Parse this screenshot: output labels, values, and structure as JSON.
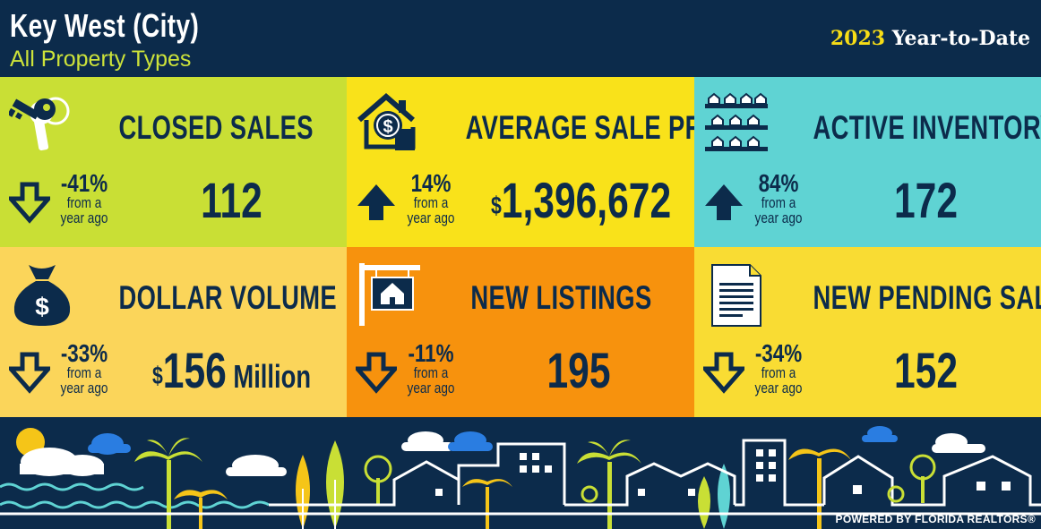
{
  "header": {
    "city": "Key West (City)",
    "property_types": "All Property Types",
    "year": "2023",
    "period": "Year-to-Date"
  },
  "tiles": [
    {
      "title": "CLOSED SALES",
      "pct": "-41%",
      "from_line1": "from a",
      "from_line2": "year ago",
      "direction": "down",
      "value": "112",
      "value_prefix": "",
      "value_unit": "",
      "icon": "keys-icon"
    },
    {
      "title": "AVERAGE SALE PRICE",
      "pct": "14%",
      "from_line1": "from a",
      "from_line2": "year ago",
      "direction": "up",
      "value": "1,396,672",
      "value_prefix": "$",
      "value_unit": "",
      "icon": "house-dollar-icon"
    },
    {
      "title": "ACTIVE INVENTORY",
      "pct": "84%",
      "from_line1": "from a",
      "from_line2": "year ago",
      "direction": "up",
      "value": "172",
      "value_prefix": "",
      "value_unit": "",
      "icon": "houses-rows-icon"
    },
    {
      "title": "DOLLAR VOLUME",
      "pct": "-33%",
      "from_line1": "from a",
      "from_line2": "year ago",
      "direction": "down",
      "value": "156",
      "value_prefix": "$",
      "value_unit": " Million",
      "icon": "money-bag-icon"
    },
    {
      "title": "NEW LISTINGS",
      "pct": "-11%",
      "from_line1": "from a",
      "from_line2": "year ago",
      "direction": "down",
      "value": "195",
      "value_prefix": "",
      "value_unit": "",
      "icon": "listing-sign-icon"
    },
    {
      "title": "NEW PENDING SALES",
      "pct": "-34%",
      "from_line1": "from a",
      "from_line2": "year ago",
      "direction": "down",
      "value": "152",
      "value_prefix": "",
      "value_unit": "",
      "icon": "document-icon"
    }
  ],
  "footer": {
    "powered_by": "POWERED BY FLORIDA REALTORS®"
  },
  "colors": {
    "navy": "#0c2b4b",
    "lime": "#c9df35",
    "yellow": "#f9e21a",
    "teal": "#5fd3d3",
    "light_orange": "#fbd55a",
    "orange": "#f7920d",
    "gold": "#f9dc33"
  }
}
